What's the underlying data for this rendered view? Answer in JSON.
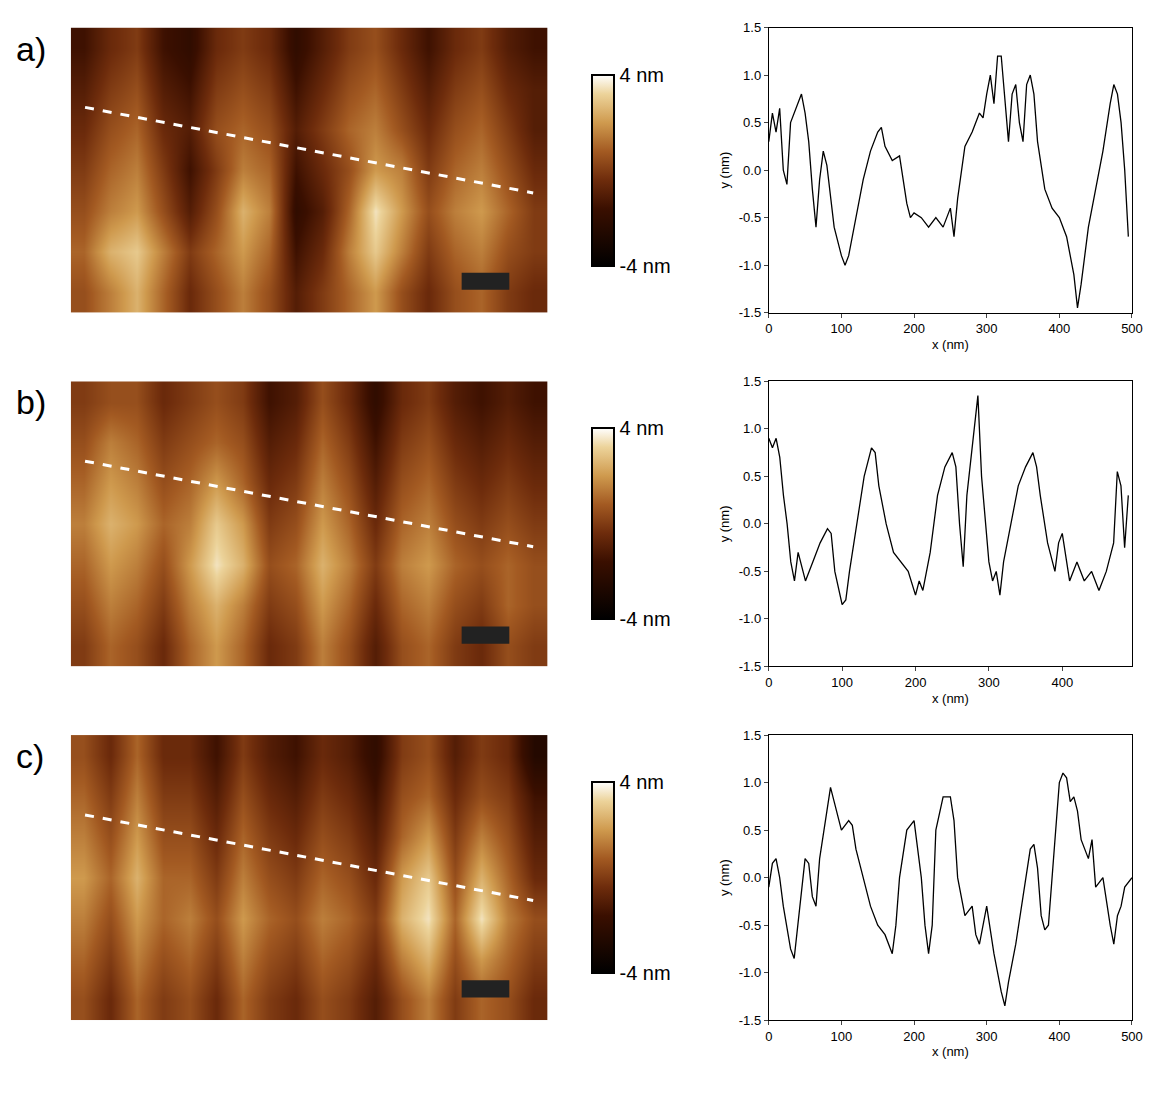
{
  "chart_data": [
    {
      "type": "heatmap",
      "title": "a)",
      "tick_labels": false,
      "z": [
        [
          0.5,
          1.5,
          2.5,
          1.0,
          -0.5,
          0.5,
          1.5,
          0.5,
          -1.0,
          0.0,
          1.0,
          2.0,
          0.5,
          -0.5,
          0.5,
          1.0,
          0.0,
          -0.5
        ],
        [
          1.0,
          2.5,
          3.0,
          1.5,
          0.0,
          1.0,
          2.0,
          1.0,
          -1.5,
          -0.5,
          1.5,
          3.0,
          1.5,
          0.0,
          1.0,
          1.5,
          0.5,
          0.0
        ],
        [
          0.5,
          1.5,
          2.0,
          0.5,
          -1.0,
          0.5,
          2.5,
          1.5,
          -2.0,
          -1.0,
          1.0,
          3.5,
          2.0,
          0.5,
          1.5,
          2.0,
          1.0,
          0.0
        ],
        [
          0.0,
          1.0,
          1.5,
          0.0,
          -1.5,
          0.0,
          1.5,
          1.0,
          -1.5,
          -0.5,
          0.5,
          2.0,
          1.5,
          0.0,
          1.0,
          1.5,
          0.5,
          -0.5
        ],
        [
          -0.5,
          0.5,
          1.0,
          -0.5,
          -1.0,
          0.5,
          1.0,
          0.5,
          -1.0,
          0.0,
          1.0,
          1.5,
          0.5,
          -0.5,
          0.5,
          1.0,
          0.0,
          -1.0
        ],
        [
          -1.0,
          0.0,
          0.5,
          -1.0,
          -1.5,
          0.0,
          0.5,
          0.0,
          -1.5,
          -0.5,
          0.5,
          1.0,
          0.0,
          -1.0,
          0.0,
          0.5,
          -0.5,
          -1.0
        ],
        [
          -1.5,
          -0.5,
          0.0,
          -1.5,
          -2.0,
          -0.5,
          0.0,
          -0.5,
          -2.0,
          -1.0,
          0.0,
          0.5,
          -0.5,
          -1.5,
          -0.5,
          0.0,
          -1.0,
          -1.5
        ]
      ],
      "colorbar_range": [
        -4,
        4
      ],
      "colorbar_ticks": [
        {
          "value": -4,
          "label": "-4 nm"
        },
        {
          "value": 4,
          "label": "4 nm"
        }
      ]
    },
    {
      "type": "line",
      "xlabel": "x (nm)",
      "ylabel": "y (nm)",
      "color": "#000000",
      "grid": false,
      "xlim": [
        0,
        500
      ],
      "xticks": [
        0,
        100,
        200,
        300,
        400,
        500
      ],
      "ylim": [
        -1.5,
        1.5
      ],
      "yticks": [
        {
          "value": -1.5,
          "label": "-1.5"
        },
        {
          "value": -1,
          "label": "-1.0"
        },
        {
          "value": -0.5,
          "label": "-0.5"
        },
        {
          "value": 0,
          "label": "0.0"
        },
        {
          "value": 0.5,
          "label": "0.5"
        },
        {
          "value": 1,
          "label": "1.0"
        },
        {
          "value": 1.5,
          "label": "1.5"
        }
      ],
      "x": [
        0,
        5,
        10,
        15,
        20,
        25,
        30,
        40,
        45,
        50,
        55,
        60,
        65,
        70,
        75,
        80,
        85,
        90,
        100,
        105,
        110,
        120,
        130,
        140,
        150,
        155,
        160,
        170,
        180,
        190,
        195,
        200,
        210,
        220,
        230,
        240,
        250,
        255,
        260,
        270,
        280,
        290,
        295,
        300,
        305,
        310,
        315,
        320,
        325,
        330,
        335,
        340,
        345,
        350,
        355,
        360,
        365,
        370,
        380,
        390,
        400,
        410,
        420,
        425,
        430,
        440,
        450,
        460,
        470,
        475,
        480,
        485,
        490,
        495
      ],
      "values": [
        0.3,
        0.6,
        0.4,
        0.65,
        0.0,
        -0.15,
        0.5,
        0.7,
        0.8,
        0.6,
        0.3,
        -0.2,
        -0.6,
        -0.1,
        0.2,
        0.05,
        -0.3,
        -0.6,
        -0.9,
        -1.0,
        -0.9,
        -0.5,
        -0.1,
        0.2,
        0.4,
        0.45,
        0.25,
        0.1,
        0.15,
        -0.35,
        -0.5,
        -0.45,
        -0.5,
        -0.6,
        -0.5,
        -0.6,
        -0.4,
        -0.7,
        -0.3,
        0.25,
        0.4,
        0.6,
        0.55,
        0.8,
        1.0,
        0.7,
        1.2,
        1.2,
        0.7,
        0.3,
        0.8,
        0.9,
        0.5,
        0.3,
        0.9,
        1.0,
        0.8,
        0.3,
        -0.2,
        -0.4,
        -0.5,
        -0.7,
        -1.1,
        -1.45,
        -1.2,
        -0.6,
        -0.2,
        0.2,
        0.7,
        0.9,
        0.8,
        0.5,
        0.0,
        -0.7
      ]
    },
    {
      "type": "heatmap",
      "title": "b)",
      "tick_labels": false,
      "z": [
        [
          0.0,
          1.0,
          0.5,
          -0.5,
          1.0,
          2.0,
          1.0,
          -0.5,
          0.0,
          1.5,
          0.5,
          -1.0,
          0.5,
          1.0,
          0.0,
          -0.5,
          0.5,
          0.0
        ],
        [
          0.5,
          1.5,
          1.0,
          0.0,
          1.5,
          2.5,
          1.5,
          0.0,
          0.5,
          2.0,
          1.0,
          -0.5,
          1.0,
          1.5,
          0.5,
          0.0,
          1.0,
          0.5
        ],
        [
          1.0,
          2.0,
          1.5,
          0.5,
          2.0,
          3.5,
          2.5,
          0.5,
          1.0,
          2.5,
          1.5,
          0.0,
          1.5,
          2.0,
          1.0,
          0.5,
          1.0,
          0.5
        ],
        [
          1.5,
          2.5,
          2.0,
          1.0,
          1.5,
          3.0,
          2.0,
          0.0,
          0.5,
          2.0,
          1.0,
          -0.5,
          1.0,
          1.5,
          0.5,
          0.0,
          0.5,
          0.0
        ],
        [
          1.0,
          2.0,
          1.5,
          0.5,
          1.0,
          2.0,
          1.0,
          -0.5,
          0.0,
          1.5,
          0.5,
          -1.0,
          0.5,
          1.0,
          0.0,
          -0.5,
          0.0,
          -0.5
        ],
        [
          0.5,
          1.5,
          1.0,
          0.0,
          0.5,
          1.0,
          0.5,
          -1.0,
          -0.5,
          1.0,
          0.0,
          -1.5,
          0.0,
          0.5,
          -0.5,
          -1.0,
          -0.5,
          -1.0
        ],
        [
          0.0,
          0.5,
          0.5,
          -0.5,
          0.0,
          0.5,
          0.0,
          -1.5,
          -1.0,
          0.5,
          -0.5,
          -2.0,
          -0.5,
          0.0,
          -1.0,
          -1.5,
          -1.0,
          -1.5
        ]
      ],
      "colorbar_range": [
        -4,
        4
      ],
      "colorbar_ticks": [
        {
          "value": -4,
          "label": "-4 nm"
        },
        {
          "value": 4,
          "label": "4 nm"
        }
      ]
    },
    {
      "type": "line",
      "xlabel": "x (nm)",
      "ylabel": "y (nm)",
      "color": "#000000",
      "grid": false,
      "xlim": [
        0,
        495
      ],
      "xticks": [
        0,
        100,
        200,
        300,
        400
      ],
      "ylim": [
        -1.5,
        1.5
      ],
      "yticks": [
        {
          "value": -1.5,
          "label": "-1.5"
        },
        {
          "value": -1,
          "label": "-1.0"
        },
        {
          "value": -0.5,
          "label": "-0.5"
        },
        {
          "value": 0,
          "label": "0.0"
        },
        {
          "value": 0.5,
          "label": "0.5"
        },
        {
          "value": 1,
          "label": "1.0"
        },
        {
          "value": 1.5,
          "label": "1.5"
        }
      ],
      "x": [
        0,
        5,
        10,
        15,
        20,
        25,
        30,
        35,
        40,
        45,
        50,
        60,
        70,
        80,
        85,
        90,
        100,
        105,
        110,
        120,
        130,
        140,
        145,
        150,
        160,
        170,
        180,
        190,
        200,
        205,
        210,
        220,
        230,
        240,
        250,
        255,
        260,
        265,
        270,
        280,
        285,
        290,
        300,
        305,
        310,
        315,
        320,
        330,
        340,
        350,
        360,
        365,
        370,
        380,
        390,
        395,
        400,
        410,
        420,
        430,
        440,
        450,
        460,
        470,
        475,
        480,
        485,
        490
      ],
      "values": [
        0.9,
        0.8,
        0.9,
        0.7,
        0.3,
        0.0,
        -0.4,
        -0.6,
        -0.3,
        -0.45,
        -0.6,
        -0.4,
        -0.2,
        -0.05,
        -0.1,
        -0.5,
        -0.85,
        -0.8,
        -0.5,
        0.0,
        0.5,
        0.8,
        0.75,
        0.4,
        0.0,
        -0.3,
        -0.4,
        -0.5,
        -0.75,
        -0.6,
        -0.7,
        -0.3,
        0.3,
        0.6,
        0.75,
        0.6,
        0.0,
        -0.45,
        0.3,
        1.0,
        1.35,
        0.5,
        -0.4,
        -0.6,
        -0.5,
        -0.75,
        -0.4,
        0.0,
        0.4,
        0.6,
        0.75,
        0.6,
        0.3,
        -0.2,
        -0.5,
        -0.2,
        -0.1,
        -0.6,
        -0.4,
        -0.6,
        -0.5,
        -0.7,
        -0.5,
        -0.2,
        0.55,
        0.4,
        -0.25,
        0.3
      ]
    },
    {
      "type": "heatmap",
      "title": "c)",
      "tick_labels": false,
      "z": [
        [
          0.5,
          -0.5,
          1.0,
          0.0,
          0.5,
          -0.5,
          1.0,
          0.0,
          -0.5,
          0.5,
          0.0,
          -1.0,
          0.5,
          1.5,
          0.0,
          1.0,
          0.5,
          -0.5
        ],
        [
          1.0,
          0.0,
          1.5,
          0.5,
          1.0,
          0.0,
          1.5,
          0.5,
          0.0,
          1.0,
          0.5,
          -0.5,
          1.5,
          2.5,
          0.5,
          2.0,
          1.0,
          0.0
        ],
        [
          1.5,
          0.5,
          2.0,
          1.0,
          1.5,
          0.5,
          2.0,
          1.0,
          0.5,
          1.5,
          1.0,
          0.0,
          2.5,
          3.5,
          1.0,
          3.5,
          1.5,
          0.5
        ],
        [
          2.0,
          1.0,
          2.5,
          1.0,
          1.0,
          0.0,
          1.5,
          0.5,
          0.0,
          1.0,
          0.5,
          -0.5,
          2.0,
          3.0,
          0.5,
          2.5,
          1.0,
          -0.5
        ],
        [
          1.5,
          0.5,
          2.0,
          0.5,
          0.5,
          -0.5,
          1.0,
          0.0,
          -0.5,
          0.5,
          0.0,
          -1.0,
          1.0,
          2.0,
          0.0,
          1.5,
          0.5,
          -1.0
        ],
        [
          1.0,
          0.0,
          1.5,
          0.0,
          0.0,
          -1.0,
          0.5,
          -0.5,
          -1.0,
          0.0,
          -0.5,
          -1.5,
          0.5,
          1.0,
          -0.5,
          0.5,
          0.0,
          -1.5
        ],
        [
          0.5,
          -0.5,
          1.0,
          -0.5,
          -0.5,
          -1.5,
          0.0,
          -1.0,
          -1.5,
          -0.5,
          -1.0,
          -2.0,
          0.0,
          0.5,
          -1.0,
          0.0,
          -0.5,
          -2.5
        ]
      ],
      "colorbar_range": [
        -4,
        4
      ],
      "colorbar_ticks": [
        {
          "value": -4,
          "label": "-4 nm"
        },
        {
          "value": 4,
          "label": "4 nm"
        }
      ]
    },
    {
      "type": "line",
      "xlabel": "x (nm)",
      "ylabel": "y (nm)",
      "color": "#000000",
      "grid": false,
      "xlim": [
        0,
        500
      ],
      "xticks": [
        0,
        100,
        200,
        300,
        400,
        500
      ],
      "ylim": [
        -1.5,
        1.5
      ],
      "yticks": [
        {
          "value": -1.5,
          "label": "-1.5"
        },
        {
          "value": -1,
          "label": "-1.0"
        },
        {
          "value": -0.5,
          "label": "-0.5"
        },
        {
          "value": 0,
          "label": "0.0"
        },
        {
          "value": 0.5,
          "label": "0.5"
        },
        {
          "value": 1,
          "label": "1.0"
        },
        {
          "value": 1.5,
          "label": "1.5"
        }
      ],
      "x": [
        0,
        5,
        10,
        15,
        20,
        30,
        35,
        40,
        45,
        50,
        55,
        60,
        65,
        70,
        80,
        85,
        90,
        100,
        110,
        115,
        120,
        130,
        140,
        150,
        160,
        170,
        175,
        180,
        190,
        200,
        210,
        215,
        220,
        225,
        230,
        240,
        250,
        255,
        260,
        270,
        280,
        285,
        290,
        300,
        310,
        320,
        325,
        330,
        340,
        350,
        360,
        365,
        370,
        375,
        380,
        385,
        390,
        400,
        405,
        410,
        415,
        420,
        425,
        430,
        440,
        445,
        450,
        460,
        470,
        475,
        480,
        485,
        490,
        495,
        500
      ],
      "values": [
        -0.1,
        0.15,
        0.2,
        0.0,
        -0.3,
        -0.75,
        -0.85,
        -0.5,
        -0.1,
        0.2,
        0.15,
        -0.2,
        -0.3,
        0.2,
        0.7,
        0.95,
        0.8,
        0.5,
        0.6,
        0.55,
        0.3,
        0.0,
        -0.3,
        -0.5,
        -0.6,
        -0.8,
        -0.5,
        0.0,
        0.5,
        0.6,
        0.0,
        -0.5,
        -0.8,
        -0.5,
        0.5,
        0.85,
        0.85,
        0.6,
        0.0,
        -0.4,
        -0.3,
        -0.6,
        -0.7,
        -0.3,
        -0.8,
        -1.2,
        -1.35,
        -1.1,
        -0.7,
        -0.2,
        0.3,
        0.35,
        0.1,
        -0.4,
        -0.55,
        -0.5,
        0.0,
        1.0,
        1.1,
        1.05,
        0.8,
        0.85,
        0.7,
        0.4,
        0.2,
        0.4,
        -0.1,
        0.0,
        -0.5,
        -0.7,
        -0.4,
        -0.3,
        -0.1,
        -0.05,
        0.0
      ]
    }
  ]
}
